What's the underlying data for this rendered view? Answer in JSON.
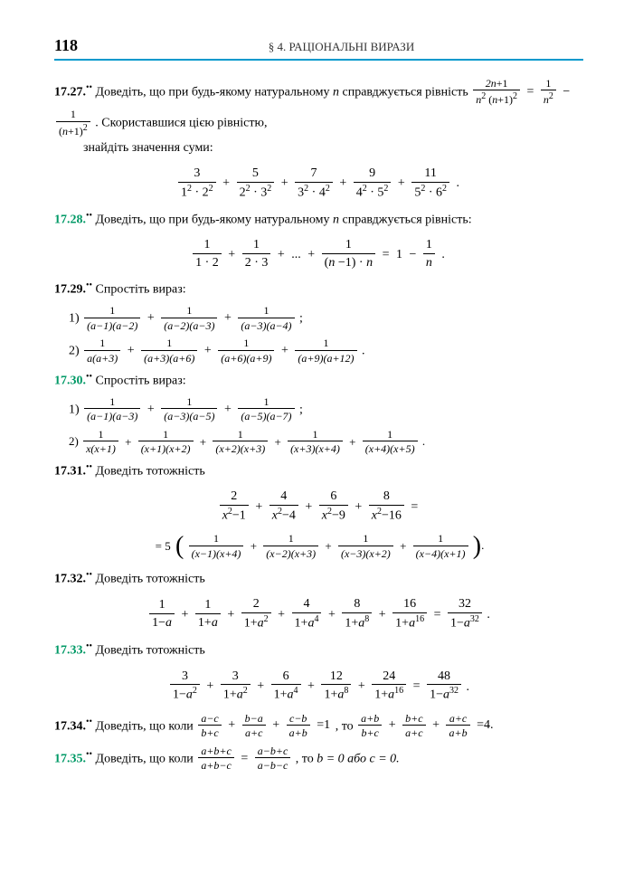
{
  "header": {
    "page_number": "118",
    "section_label": "§ 4.  РАЦІОНАЛЬНІ ВИРАЗИ"
  },
  "problems": {
    "p1727": {
      "num": "17.27.",
      "marker": "••",
      "text_a": "Доведіть, що при будь-якому натуральному ",
      "var": "n",
      "text_b": " справджується рівність ",
      "text_c": ". Скористав­шися цією рівністю,",
      "text_d": "знайдіть значення суми:",
      "eq1_frac1_num": "2n+1",
      "eq1_frac1_den_a": "n",
      "eq1_frac1_den_b": "(n+1)",
      "eq1_eq": "=",
      "eq1_frac2_num": "1",
      "eq1_frac2_den": "n",
      "eq1_minus": "−",
      "eq1_frac3_num": "1",
      "eq1_frac3_den": "(n+1)",
      "sum_t1_num": "3",
      "sum_t1_d1": "1",
      "sum_t1_d2": "2",
      "sum_t2_num": "5",
      "sum_t2_d1": "2",
      "sum_t2_d2": "3",
      "sum_t3_num": "7",
      "sum_t3_d1": "3",
      "sum_t3_d2": "4",
      "sum_t4_num": "9",
      "sum_t4_d1": "4",
      "sum_t4_d2": "5",
      "sum_t5_num": "11",
      "sum_t5_d1": "5",
      "sum_t5_d2": "6"
    },
    "p1728": {
      "num": "17.28.",
      "marker": "••",
      "text_a": "Доведіть, що при будь-якому натуральному ",
      "var": "n",
      "text_b": " справджується рівність:",
      "t1_num": "1",
      "t1_den": "1 · 2",
      "t2_num": "1",
      "t2_den": "2 · 3",
      "dots": "...",
      "tn_num": "1",
      "tn_den": "(n −1) · n",
      "eq": "=",
      "rhs_a": "1",
      "minus": "−",
      "rhs_frac_num": "1",
      "rhs_frac_den": "n"
    },
    "p1729": {
      "num": "17.29.",
      "marker": "••",
      "text": "Спростіть вираз:",
      "item1": "1)",
      "i1t1_den": "(a−1)(a−2)",
      "i1t2_den": "(a−2)(a−3)",
      "i1t3_den": "(a−3)(a−4)",
      "item2": "2)",
      "i2t1_den": "a(a+3)",
      "i2t2_den": "(a+3)(a+6)",
      "i2t3_den": "(a+6)(a+9)",
      "i2t4_den": "(a+9)(a+12)"
    },
    "p1730": {
      "num": "17.30.",
      "marker": "••",
      "text": "Спростіть вираз:",
      "item1": "1)",
      "i1t1_den": "(a−1)(a−3)",
      "i1t2_den": "(a−3)(a−5)",
      "i1t3_den": "(a−5)(a−7)",
      "item2": "2)",
      "i2t1_den": "x(x+1)",
      "i2t2_den": "(x+1)(x+2)",
      "i2t3_den": "(x+2)(x+3)",
      "i2t4_den": "(x+3)(x+4)",
      "i2t5_den": "(x+4)(x+5)"
    },
    "p1731": {
      "num": "17.31.",
      "marker": "••",
      "text": "Доведіть тотожність",
      "l1t1_num": "2",
      "l1t1_den": "x²−1",
      "l1t2_num": "4",
      "l1t2_den": "x²−4",
      "l1t3_num": "6",
      "l1t3_den": "x²−9",
      "l1t4_num": "8",
      "l1t4_den": "x²−16",
      "rhs_coef": "= 5",
      "r1_den": "(x−1)(x+4)",
      "r2_den": "(x−2)(x+3)",
      "r3_den": "(x−3)(x+2)",
      "r4_den": "(x−4)(x+1)"
    },
    "p1732": {
      "num": "17.32.",
      "marker": "••",
      "text": "Доведіть тотожність",
      "t1_num": "1",
      "t1_den": "1−a",
      "t2_num": "1",
      "t2_den": "1+a",
      "t3_num": "2",
      "t3_den": "1+a²",
      "t4_num": "4",
      "t4_den": "1+a⁴",
      "t5_num": "8",
      "t5_den": "1+a⁸",
      "t6_num": "16",
      "t6_den": "1+a¹⁶",
      "eq": "=",
      "rhs_num": "32",
      "rhs_den": "1−a³²"
    },
    "p1733": {
      "num": "17.33.",
      "marker": "••",
      "text": "Доведіть тотожність",
      "t1_num": "3",
      "t1_den": "1−a²",
      "t2_num": "3",
      "t2_den": "1+a²",
      "t3_num": "6",
      "t3_den": "1+a⁴",
      "t4_num": "12",
      "t4_den": "1+a⁸",
      "t5_num": "24",
      "t5_den": "1+a¹⁶",
      "eq": "=",
      "rhs_num": "48",
      "rhs_den": "1−a³²"
    },
    "p1734": {
      "num": "17.34.",
      "marker": "••",
      "text_a": "Доведіть, що коли ",
      "l1_num": "a−c",
      "l1_den": "b+c",
      "l2_num": "b−a",
      "l2_den": "a+c",
      "l3_num": "c−b",
      "l3_den": "a+b",
      "eq1": "=1",
      "text_b": ", то ",
      "r1_num": "a+b",
      "r1_den": "b+c",
      "r2_num": "b+c",
      "r2_den": "a+c",
      "r3_num": "a+c",
      "r3_den": "a+b",
      "eq2": "=4."
    },
    "p1735": {
      "num": "17.35.",
      "marker": "••",
      "text_a": "Доведіть, що коли ",
      "l_num": "a+b+c",
      "l_den": "a+b−c",
      "eq": "=",
      "r_num": "a−b+c",
      "r_den": "a−b−c",
      "text_b": ", то ",
      "concl": "b = 0 або c = 0."
    }
  },
  "symbols": {
    "plus": "+",
    "dot": " · ",
    "semi": ";",
    "period": ".",
    "one": "1"
  }
}
